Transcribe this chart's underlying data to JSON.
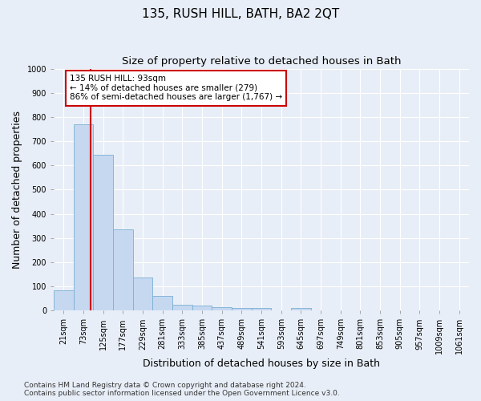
{
  "title": "135, RUSH HILL, BATH, BA2 2QT",
  "subtitle": "Size of property relative to detached houses in Bath",
  "xlabel": "Distribution of detached houses by size in Bath",
  "ylabel": "Number of detached properties",
  "footnote1": "Contains HM Land Registry data © Crown copyright and database right 2024.",
  "footnote2": "Contains public sector information licensed under the Open Government Licence v3.0.",
  "bin_labels": [
    "21sqm",
    "73sqm",
    "125sqm",
    "177sqm",
    "229sqm",
    "281sqm",
    "333sqm",
    "385sqm",
    "437sqm",
    "489sqm",
    "541sqm",
    "593sqm",
    "645sqm",
    "697sqm",
    "749sqm",
    "801sqm",
    "853sqm",
    "905sqm",
    "957sqm",
    "1009sqm",
    "1061sqm"
  ],
  "bar_values": [
    85,
    770,
    645,
    335,
    135,
    60,
    25,
    20,
    15,
    10,
    10,
    0,
    10,
    0,
    0,
    0,
    0,
    0,
    0,
    0,
    0
  ],
  "bar_color": "#c5d8f0",
  "bar_edge_color": "#7bafd4",
  "property_line_x": 1.35,
  "property_line_color": "#cc0000",
  "annotation_text": "135 RUSH HILL: 93sqm\n← 14% of detached houses are smaller (279)\n86% of semi-detached houses are larger (1,767) →",
  "annotation_box_color": "#ffffff",
  "annotation_box_edge_color": "#cc0000",
  "ylim": [
    0,
    1000
  ],
  "yticks": [
    0,
    100,
    200,
    300,
    400,
    500,
    600,
    700,
    800,
    900,
    1000
  ],
  "background_color": "#e8eef7",
  "grid_color": "#ffffff",
  "title_fontsize": 11,
  "subtitle_fontsize": 9.5,
  "axis_label_fontsize": 9,
  "tick_fontsize": 7,
  "footnote_fontsize": 6.5
}
